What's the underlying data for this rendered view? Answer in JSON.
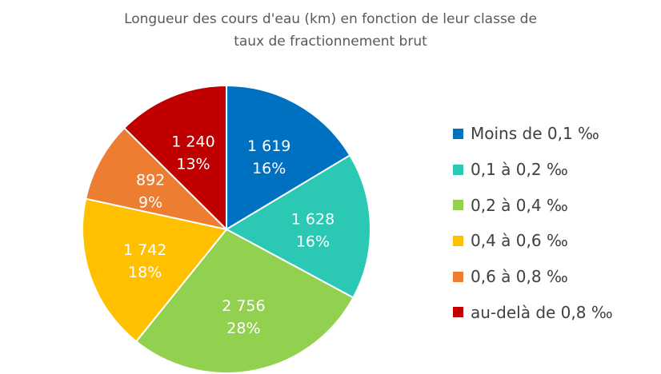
{
  "chart_data": {
    "type": "pie",
    "title_lines": [
      "Longueur des cours d'eau (km) en fonction de leur classe de",
      "taux de fractionnement brut"
    ],
    "categories": [
      "Moins de 0,1 ‰",
      "0,1 à 0,2 ‰",
      "0,2 à 0,4 ‰",
      "0,4 à 0,6 ‰",
      "0,6 à 0,8 ‰",
      "au-delà de 0,8 ‰"
    ],
    "values": [
      1619,
      1628,
      2756,
      1742,
      892,
      1240
    ],
    "value_labels": [
      "1 619",
      "1 628",
      "2 756",
      "1 742",
      "892",
      "1 240"
    ],
    "percent_labels": [
      "16%",
      "16%",
      "28%",
      "18%",
      "9%",
      "13%"
    ],
    "colors": [
      "#0070C0",
      "#2BC8B4",
      "#92D050",
      "#FFC000",
      "#ED7D31",
      "#C00000"
    ],
    "legend_position": "right"
  }
}
